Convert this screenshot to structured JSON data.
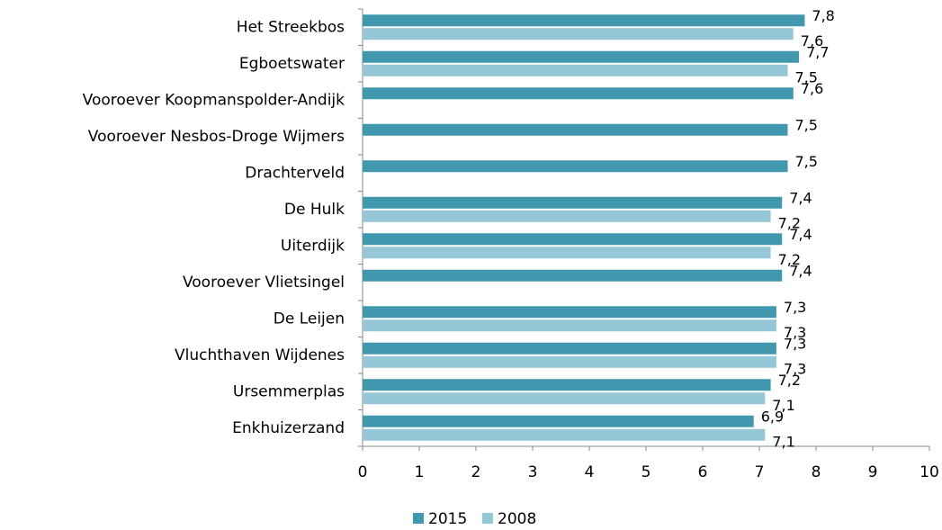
{
  "chart_data": {
    "type": "bar",
    "orientation": "horizontal",
    "categories": [
      "Het Streekbos",
      "Egboetswater",
      "Vooroever Koopmanspolder-Andijk",
      "Vooroever Nesbos-Droge Wijmers",
      "Drachterveld",
      "De Hulk",
      "Uiterdijk",
      "Vooroever Vlietsingel",
      "De Leijen",
      "Vluchthaven Wijdenes",
      "Ursemmerplas",
      "Enkhuizerzand"
    ],
    "series": [
      {
        "name": "2015",
        "color": "#4198ae",
        "values": [
          7.8,
          7.7,
          7.6,
          7.5,
          7.5,
          7.4,
          7.4,
          7.4,
          7.3,
          7.3,
          7.2,
          6.9
        ],
        "value_labels": [
          "7,8",
          "7,7",
          "7,6",
          "7,5",
          "7,5",
          "7,4",
          "7,4",
          "7,4",
          "7,3",
          "7,3",
          "7,2",
          "6,9"
        ]
      },
      {
        "name": "2008",
        "color": "#95c7d7",
        "values": [
          7.6,
          7.5,
          null,
          null,
          null,
          7.2,
          7.2,
          null,
          7.3,
          7.3,
          7.1,
          7.1
        ],
        "value_labels": [
          "7,6",
          "7,5",
          null,
          null,
          null,
          "7,2",
          "7,2",
          null,
          "7,3",
          "7,3",
          "7,1",
          "7,1"
        ]
      }
    ],
    "xlim": [
      0,
      10
    ],
    "xticks": [
      0,
      1,
      2,
      3,
      4,
      5,
      6,
      7,
      8,
      9,
      10
    ],
    "legend": "bottom"
  }
}
